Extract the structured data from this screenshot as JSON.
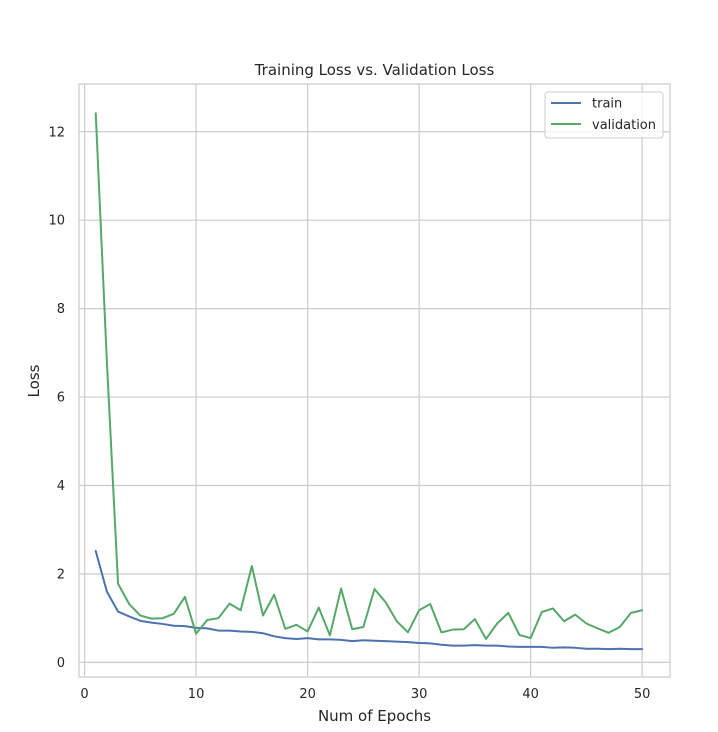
{
  "chart_data": {
    "type": "line",
    "title": "Training Loss vs. Validation Loss",
    "xlabel": "Num of Epochs",
    "ylabel": "Loss",
    "xlim": [
      -0.5,
      52.5
    ],
    "ylim": [
      -0.33,
      13.08
    ],
    "xticks": [
      0,
      10,
      20,
      30,
      40,
      50
    ],
    "yticks": [
      0,
      2,
      4,
      6,
      8,
      10,
      12
    ],
    "grid": true,
    "legend_position": "top-right",
    "x": [
      1,
      2,
      3,
      4,
      5,
      6,
      7,
      8,
      9,
      10,
      11,
      12,
      13,
      14,
      15,
      16,
      17,
      18,
      19,
      20,
      21,
      22,
      23,
      24,
      25,
      26,
      27,
      28,
      29,
      30,
      31,
      32,
      33,
      34,
      35,
      36,
      37,
      38,
      39,
      40,
      41,
      42,
      43,
      44,
      45,
      46,
      47,
      48,
      49,
      50
    ],
    "series": [
      {
        "name": "train",
        "color": "#4c72b0",
        "values": [
          2.52,
          1.6,
          1.15,
          1.04,
          0.94,
          0.9,
          0.87,
          0.83,
          0.82,
          0.78,
          0.77,
          0.72,
          0.72,
          0.7,
          0.69,
          0.66,
          0.59,
          0.55,
          0.53,
          0.55,
          0.52,
          0.52,
          0.51,
          0.48,
          0.5,
          0.49,
          0.48,
          0.47,
          0.46,
          0.44,
          0.43,
          0.4,
          0.38,
          0.38,
          0.39,
          0.38,
          0.38,
          0.36,
          0.35,
          0.35,
          0.35,
          0.33,
          0.34,
          0.33,
          0.31,
          0.31,
          0.3,
          0.31,
          0.3,
          0.3
        ]
      },
      {
        "name": "validation",
        "color": "#55a868",
        "values": [
          12.42,
          6.8,
          1.78,
          1.32,
          1.06,
          0.99,
          1.0,
          1.1,
          1.48,
          0.65,
          0.96,
          1.0,
          1.33,
          1.18,
          2.18,
          1.06,
          1.53,
          0.76,
          0.85,
          0.7,
          1.24,
          0.61,
          1.67,
          0.75,
          0.8,
          1.66,
          1.36,
          0.93,
          0.68,
          1.18,
          1.32,
          0.68,
          0.74,
          0.75,
          0.98,
          0.53,
          0.88,
          1.12,
          0.62,
          0.55,
          1.14,
          1.22,
          0.93,
          1.08,
          0.88,
          0.77,
          0.67,
          0.8,
          1.12,
          1.18
        ]
      }
    ]
  }
}
